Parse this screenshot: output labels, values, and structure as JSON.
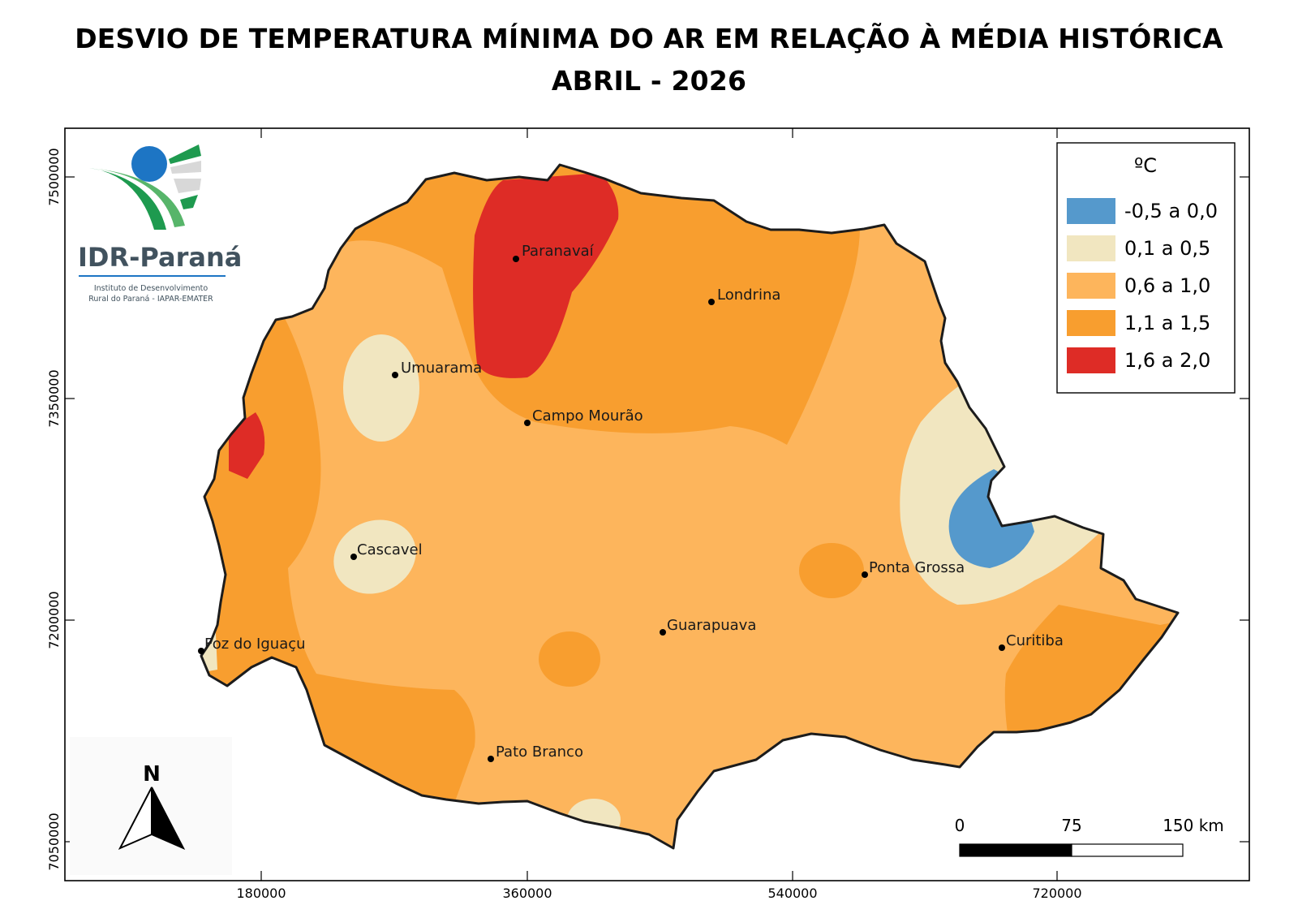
{
  "title_line1": "DESVIO DE TEMPERATURA MÍNIMA DO AR EM RELAÇÃO À MÉDIA HISTÓRICA",
  "title_line2": "ABRIL - 2026",
  "logo": {
    "name": "IDR-Paraná",
    "subtitle_line1": "Instituto de Desenvolvimento",
    "subtitle_line2": "Rural do Paraná - IAPAR-EMATER"
  },
  "legend": {
    "unit": "ºC",
    "classes": [
      {
        "label": "-0,5 a 0,0",
        "color": "#5599cc"
      },
      {
        "label": "0,1 a 0,5",
        "color": "#f1e6c0"
      },
      {
        "label": "0,6 a 1,0",
        "color": "#fdb55c"
      },
      {
        "label": "1,1 a 1,5",
        "color": "#f89e2f"
      },
      {
        "label": "1,6 a 2,0",
        "color": "#de2c26"
      }
    ]
  },
  "cities": [
    {
      "name": "Paranavaí"
    },
    {
      "name": "Londrina"
    },
    {
      "name": "Umuarama"
    },
    {
      "name": "Campo Mourão"
    },
    {
      "name": "Cascavel"
    },
    {
      "name": "Ponta Grossa"
    },
    {
      "name": "Guarapuava"
    },
    {
      "name": "Curitiba"
    },
    {
      "name": "Foz do Iguaçu"
    },
    {
      "name": "Pato Branco"
    }
  ],
  "axes": {
    "x_ticks": [
      "180000",
      "360000",
      "540000",
      "720000"
    ],
    "y_ticks": [
      "7500000",
      "7350000",
      "7200000",
      "7050000"
    ]
  },
  "north_arrow": "N",
  "scale_bar": {
    "labels": [
      "0",
      "75",
      "150 km"
    ]
  }
}
